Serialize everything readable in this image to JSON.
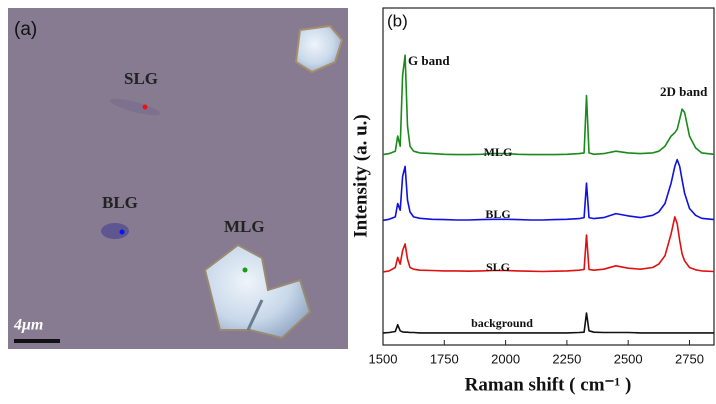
{
  "micrograph": {
    "panel_label": "(a)",
    "labels": [
      "SLG",
      "BLG",
      "MLG"
    ],
    "scale_bar": "4μm"
  },
  "chart_data": {
    "type": "line",
    "panel_label": "(b)",
    "xlabel": "Raman shift ( cm⁻¹ )",
    "ylabel": "Intensity (a. u.)",
    "annotations": [
      "G band",
      "2D band"
    ],
    "xlim": [
      1500,
      2850
    ],
    "xticks": [
      1500,
      1750,
      2000,
      2250,
      2500,
      2750
    ],
    "ylim": [
      0,
      100
    ],
    "x": [
      1500,
      1525,
      1550,
      1560,
      1570,
      1580,
      1590,
      1600,
      1610,
      1625,
      1650,
      1700,
      1750,
      1800,
      1850,
      1900,
      1950,
      2000,
      2050,
      2100,
      2150,
      2200,
      2250,
      2300,
      2320,
      2330,
      2340,
      2360,
      2400,
      2450,
      2500,
      2550,
      2600,
      2625,
      2650,
      2675,
      2690,
      2700,
      2710,
      2720,
      2730,
      2750,
      2775,
      2800,
      2850
    ],
    "series": [
      {
        "name": "MLG",
        "color": "#1a8a1a",
        "values": [
          56.5,
          56.8,
          57.5,
          62,
          59,
          80,
          86,
          65,
          59,
          57.5,
          57,
          56.8,
          56.6,
          56.5,
          56.5,
          56.6,
          56.8,
          56.8,
          56.6,
          56.5,
          56.5,
          56.5,
          56.6,
          56.8,
          57,
          74,
          57,
          56.6,
          56.8,
          57.5,
          57,
          56.8,
          57,
          57.5,
          59,
          62,
          63,
          64,
          67,
          70,
          69,
          62,
          58.5,
          57,
          56.6
        ]
      },
      {
        "name": "BLG",
        "color": "#1010e0",
        "values": [
          37,
          37.3,
          38,
          42,
          40,
          50,
          53,
          43,
          39.5,
          38,
          37.6,
          37.3,
          37.2,
          37.1,
          37.1,
          37.2,
          37.3,
          37.3,
          37.2,
          37.1,
          37.1,
          37.2,
          37.3,
          37.5,
          37.8,
          48,
          37.8,
          37.5,
          37.8,
          39,
          38.3,
          37.8,
          38.5,
          39.5,
          42,
          48,
          53,
          55,
          53,
          49,
          45,
          40.5,
          38.5,
          37.6,
          37.2
        ]
      },
      {
        "name": "SLG",
        "color": "#e01010",
        "values": [
          21.7,
          22,
          23,
          26,
          24,
          28,
          30,
          25.5,
          23,
          22.5,
          22.2,
          22.1,
          22,
          22,
          21.9,
          22,
          22.1,
          22.1,
          22,
          21.9,
          21.8,
          21.9,
          22,
          22.2,
          22.4,
          32.6,
          22.4,
          22.2,
          22.5,
          23.5,
          22.8,
          22.5,
          23,
          24,
          26.5,
          33,
          38,
          36,
          31,
          27,
          25,
          23,
          22.3,
          22,
          21.8
        ]
      },
      {
        "name": "background",
        "color": "#111111",
        "values": [
          3.6,
          3.7,
          4,
          6,
          4.2,
          3.9,
          3.8,
          3.8,
          3.7,
          3.7,
          3.6,
          3.6,
          3.6,
          3.6,
          3.6,
          3.6,
          3.6,
          3.6,
          3.6,
          3.6,
          3.6,
          3.6,
          3.6,
          3.7,
          3.8,
          9.5,
          4.2,
          3.8,
          3.7,
          3.7,
          3.7,
          3.6,
          3.6,
          3.6,
          3.6,
          3.6,
          3.6,
          3.6,
          3.6,
          3.6,
          3.6,
          3.6,
          3.6,
          3.6,
          3.6
        ]
      }
    ]
  }
}
